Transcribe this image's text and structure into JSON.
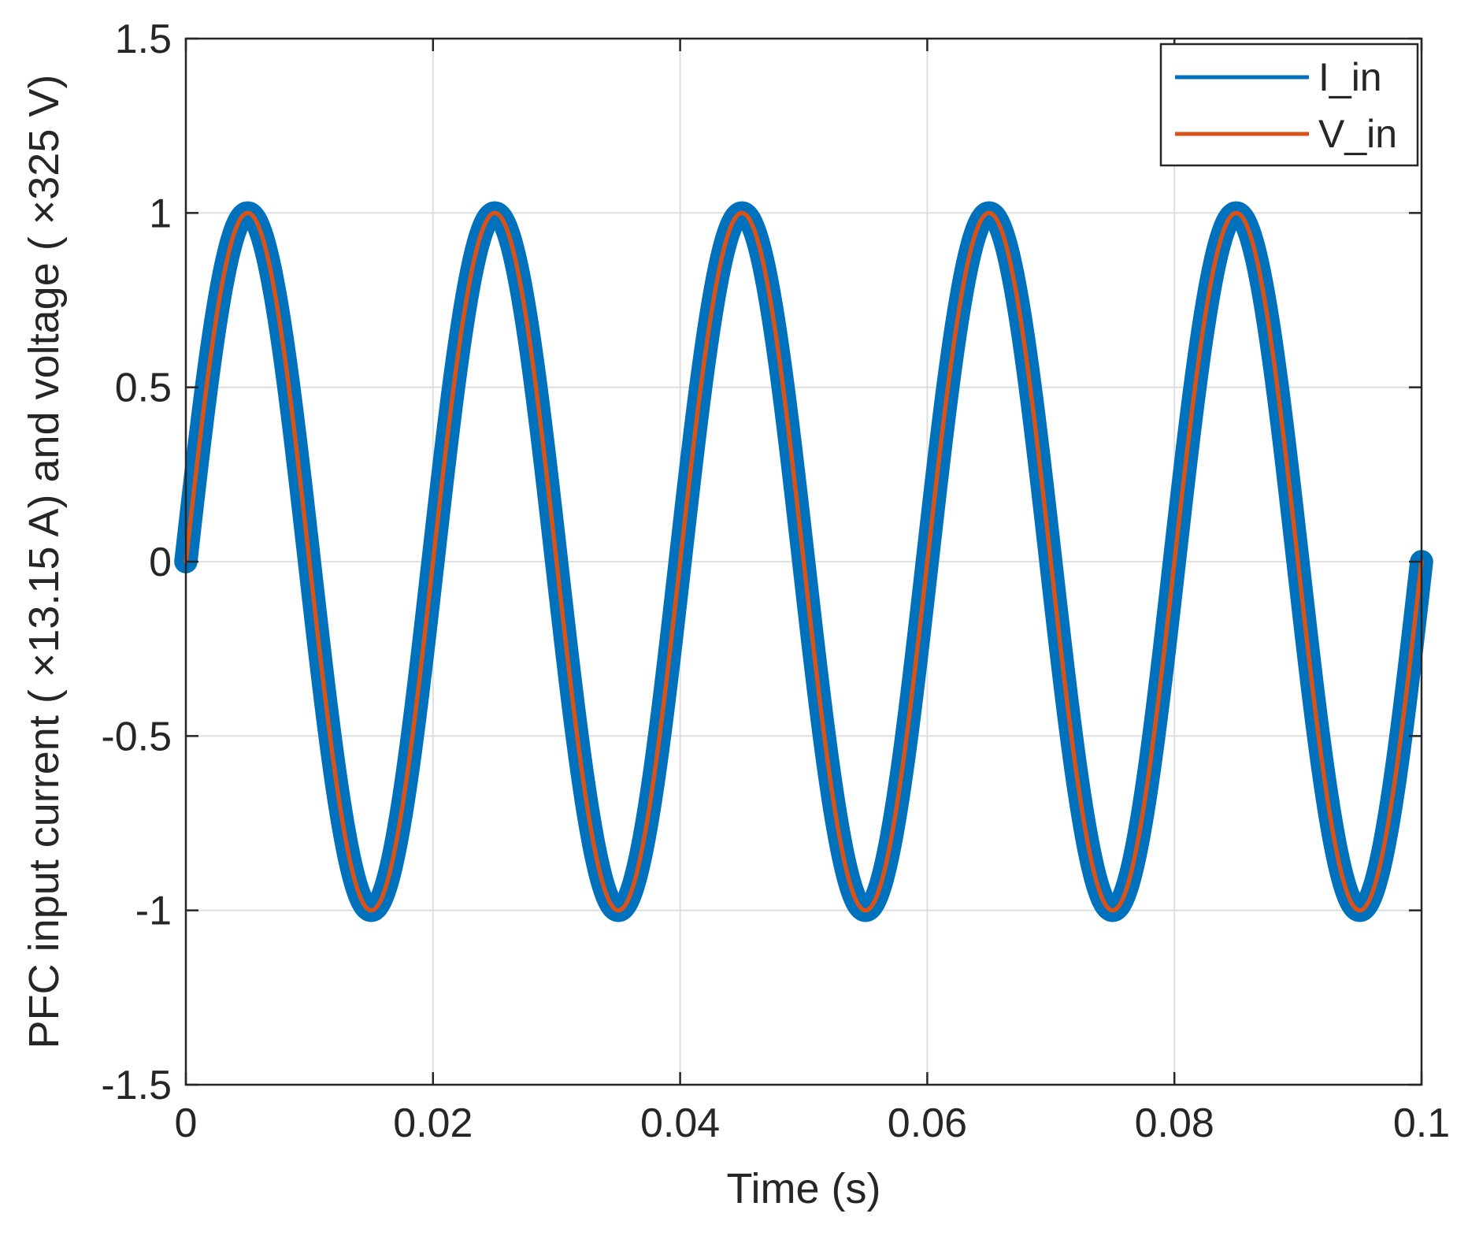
{
  "chart_data": {
    "type": "line",
    "title": "",
    "xlabel": "Time (s)",
    "ylabel": "PFC input current ( ×13.15 A) and voltage ( ×325 V)",
    "xlim": [
      0,
      0.1
    ],
    "ylim": [
      -1.5,
      1.5
    ],
    "xticks": [
      0,
      0.02,
      0.04,
      0.06,
      0.08,
      0.1
    ],
    "xtick_labels": [
      "0",
      "0.02",
      "0.04",
      "0.06",
      "0.08",
      "0.1"
    ],
    "yticks": [
      -1.5,
      -1,
      -0.5,
      0,
      0.5,
      1,
      1.5
    ],
    "ytick_labels": [
      "-1.5",
      "-1",
      "-0.5",
      "0",
      "0.5",
      "1",
      "1.5"
    ],
    "grid": true,
    "legend_position": "top-right",
    "series": [
      {
        "name": "I_in",
        "color": "#0072BD",
        "function": "sine",
        "frequency_hz": 50,
        "amplitude": 1.0,
        "ripple_amplitude": 0.03,
        "x": [
          0,
          0.005,
          0.01,
          0.015,
          0.02,
          0.025,
          0.03,
          0.035,
          0.04,
          0.045,
          0.05,
          0.055,
          0.06,
          0.065,
          0.07,
          0.075,
          0.08,
          0.085,
          0.09,
          0.095,
          0.1
        ],
        "y": [
          0,
          1,
          0,
          -1,
          0,
          1,
          0,
          -1,
          0,
          1,
          0,
          -1,
          0,
          1,
          0,
          -1,
          0,
          1,
          0,
          -1,
          0
        ]
      },
      {
        "name": "V_in",
        "color": "#D95319",
        "function": "sine",
        "frequency_hz": 50,
        "amplitude": 1.0,
        "x": [
          0,
          0.005,
          0.01,
          0.015,
          0.02,
          0.025,
          0.03,
          0.035,
          0.04,
          0.045,
          0.05,
          0.055,
          0.06,
          0.065,
          0.07,
          0.075,
          0.08,
          0.085,
          0.09,
          0.095,
          0.1
        ],
        "y": [
          0,
          1,
          0,
          -1,
          0,
          1,
          0,
          -1,
          0,
          1,
          0,
          -1,
          0,
          1,
          0,
          -1,
          0,
          1,
          0,
          -1,
          0
        ]
      }
    ]
  }
}
